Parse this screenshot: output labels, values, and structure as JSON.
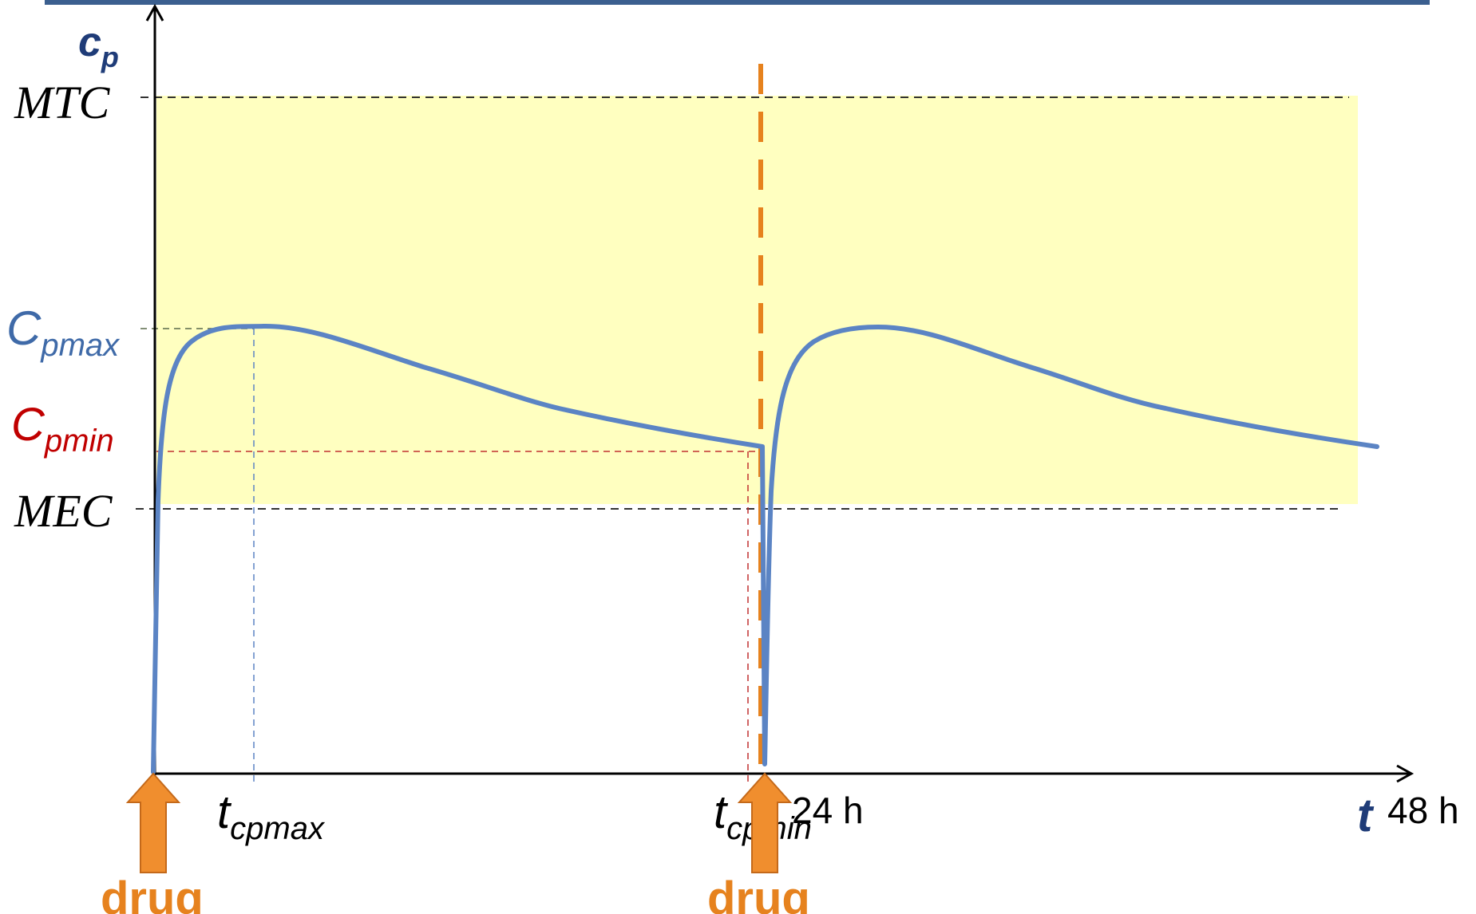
{
  "chart_data": {
    "type": "line",
    "x_axis": {
      "label": "t",
      "ticks": [
        "24 h",
        "48 h"
      ]
    },
    "y_axis": {
      "label_main": "c",
      "label_sub": "p"
    },
    "levels": [
      {
        "name": "MTC",
        "label": "MTC"
      },
      {
        "name": "Cpmax",
        "label_main": "C",
        "label_sub": "pmax"
      },
      {
        "name": "Cpmin",
        "label_main": "C",
        "label_sub": "pmin"
      },
      {
        "name": "MEC",
        "label": "MEC"
      }
    ],
    "time_markers": [
      {
        "name": "tcpmax",
        "label_main": "t",
        "label_sub": "cpmax"
      },
      {
        "name": "tcpmin",
        "label_main": "t",
        "label_sub": "cpmin"
      }
    ],
    "dose_markers": [
      {
        "label": "drug"
      },
      {
        "label": "drug"
      }
    ],
    "series": [
      {
        "values": []
      }
    ],
    "therapeutic_window": "MEC–MTC"
  },
  "colors": {
    "curve": "#5b84c4",
    "window": "#ffffc0",
    "dose": "#f0821e",
    "y_label": "#1f3c78",
    "cpmax": "#3f6aa8",
    "cpmin": "#c00000",
    "header_bar": "#3b5f8f"
  }
}
